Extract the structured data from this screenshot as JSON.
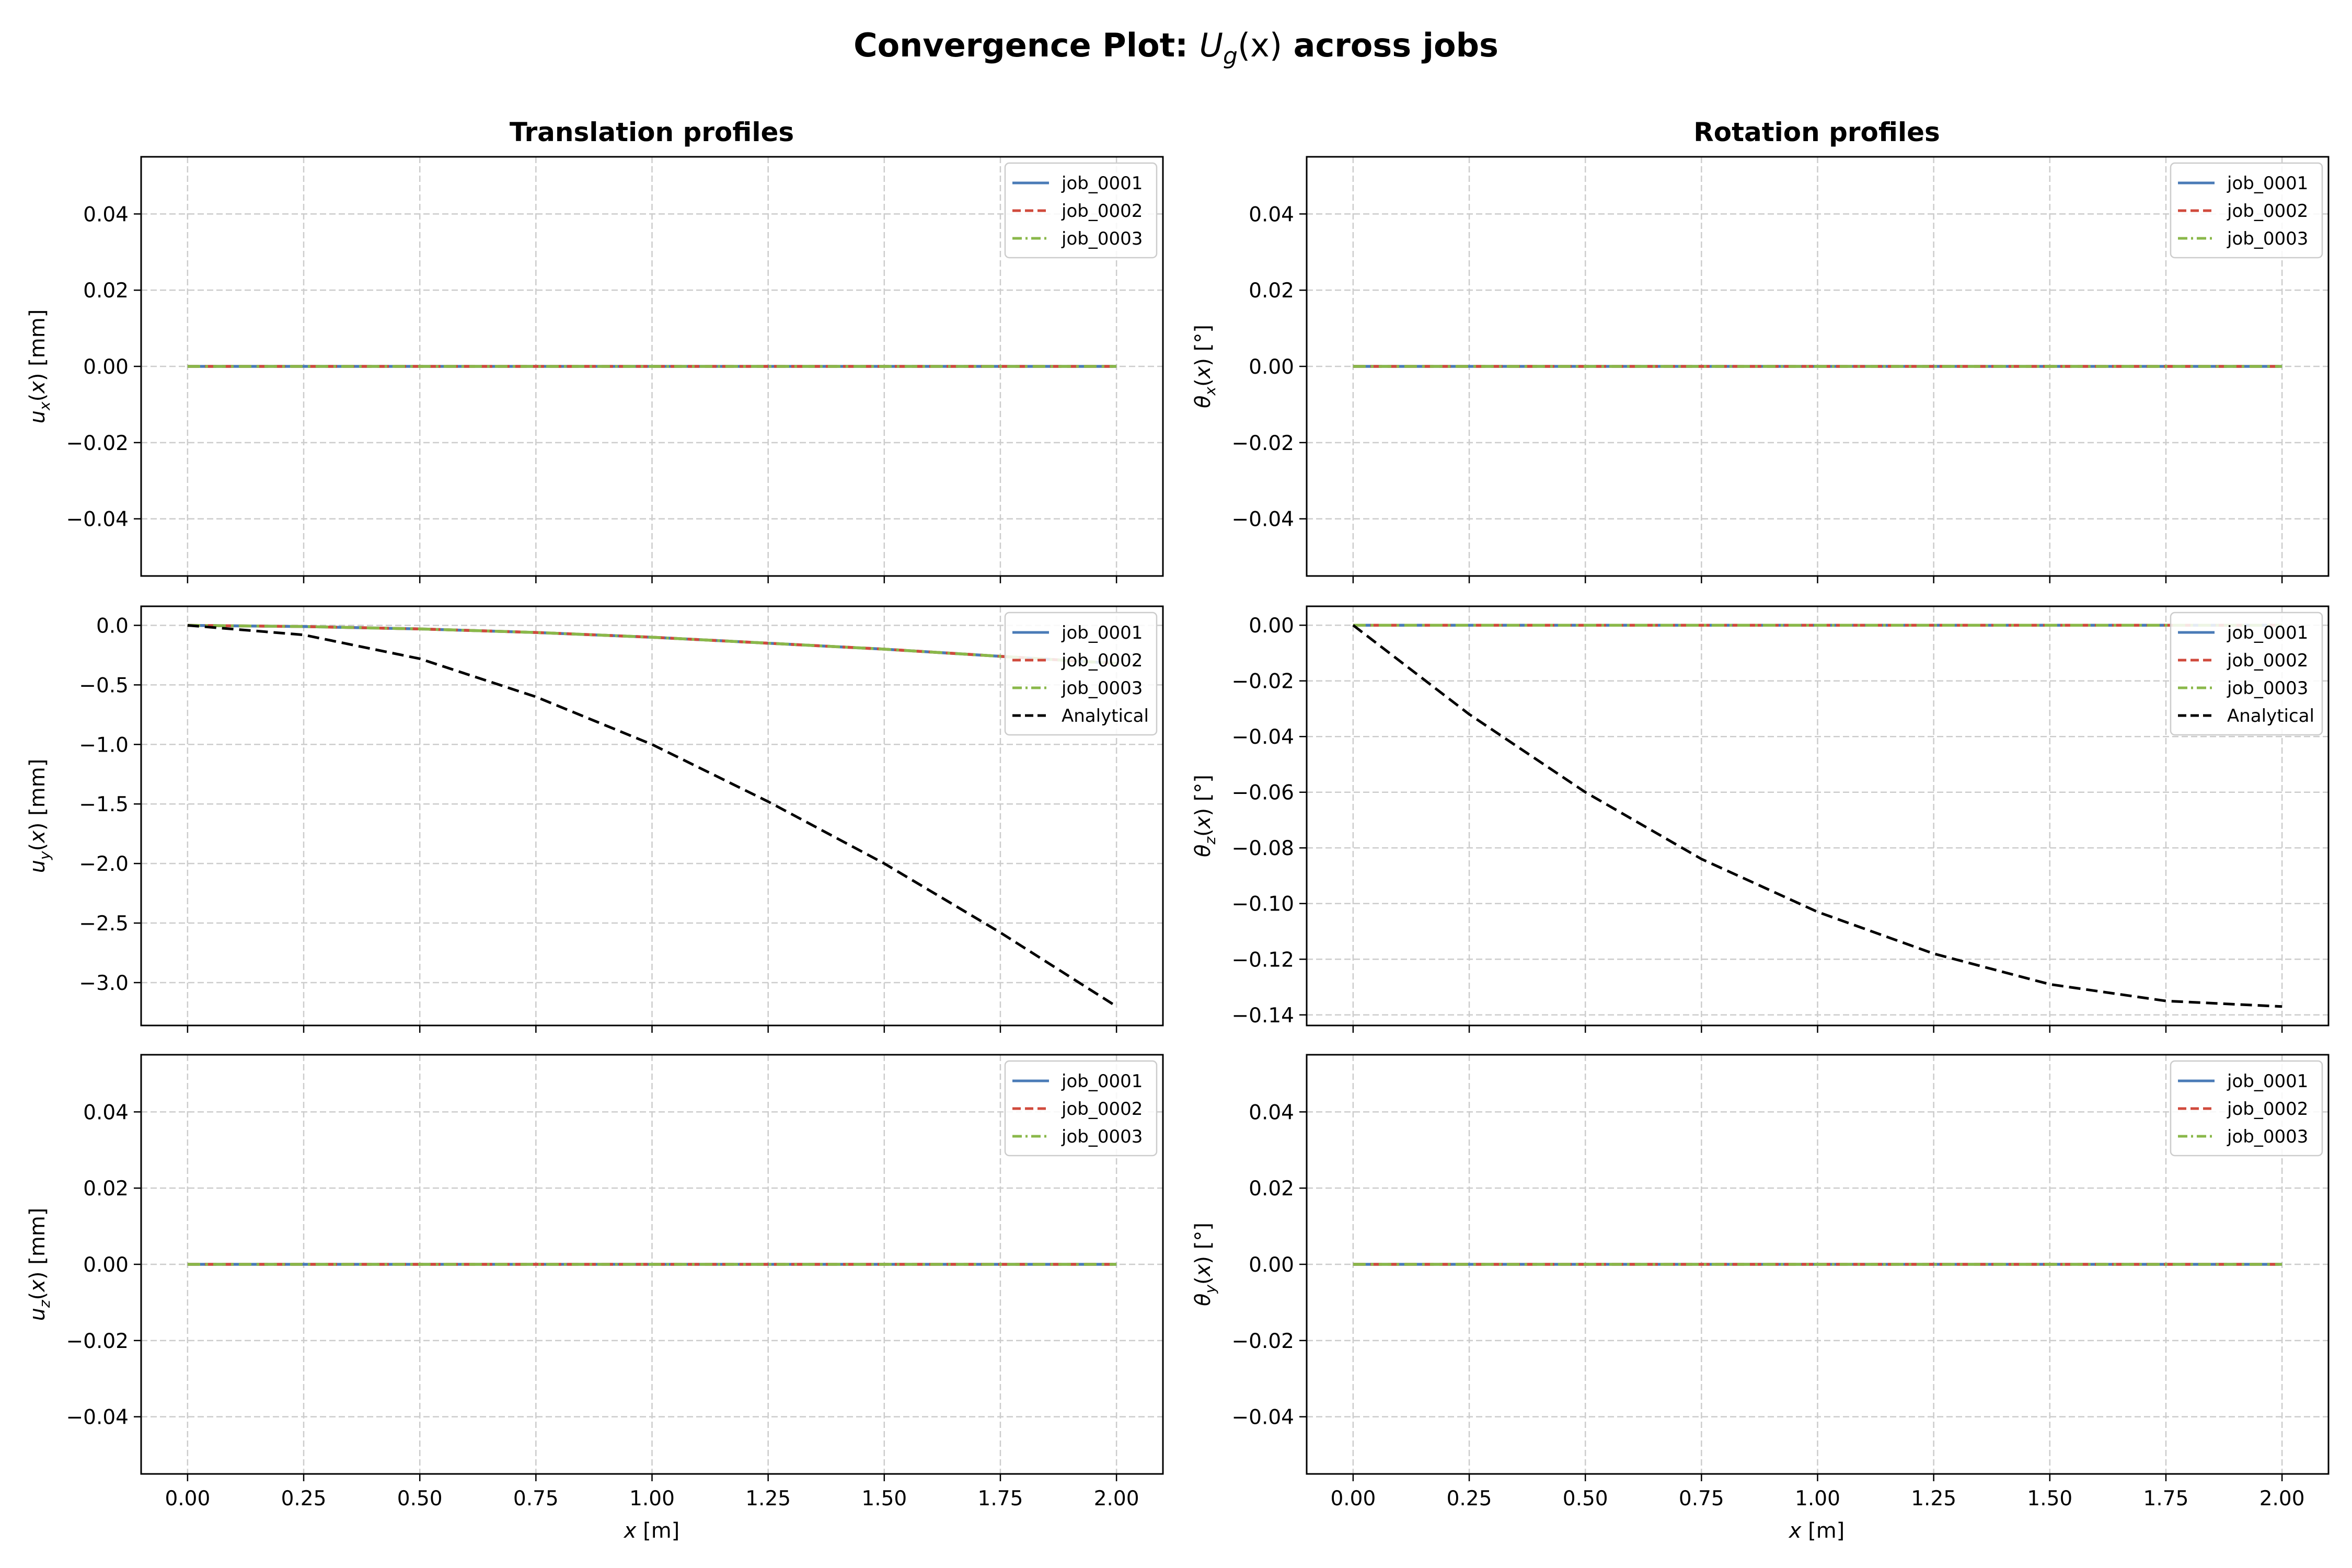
{
  "figure": {
    "title_prefix": "Convergence Plot: ",
    "title_math_main": "U",
    "title_math_sub": "g",
    "title_math_arg": "(x)",
    "title_suffix": " across jobs",
    "xlabel_math": "x",
    "xlabel_unit": " [m]"
  },
  "columns": [
    {
      "title": "Translation profiles"
    },
    {
      "title": "Rotation profiles"
    }
  ],
  "colors": {
    "job_0001": "#4a7bb7",
    "job_0002": "#d04a3c",
    "job_0003": "#8ab84a",
    "Analytical": "#000000",
    "grid": "#cccccc",
    "axes": "#000000"
  },
  "chart_data": [
    {
      "type": "line",
      "panel": "translation-x",
      "ylabel": {
        "sym": "u",
        "sub": "x",
        "unit": "[mm]"
      },
      "xlim": [
        -0.1,
        2.1
      ],
      "ylim": [
        -0.055,
        0.055
      ],
      "xticks": [
        "0.00",
        "0.25",
        "0.50",
        "0.75",
        "1.00",
        "1.25",
        "1.50",
        "1.75",
        "2.00"
      ],
      "yticks": [
        0.04,
        0.02,
        0.0,
        -0.02,
        -0.04
      ],
      "ytick_labels": [
        "0.04",
        "0.02",
        "0.00",
        "−0.02",
        "−0.04"
      ],
      "show_xticklabels": false,
      "legend": "upper right",
      "series": [
        {
          "name": "job_0001",
          "style": "solid",
          "x": [
            0,
            2
          ],
          "y": [
            0,
            0
          ]
        },
        {
          "name": "job_0002",
          "style": "dashed",
          "x": [
            0,
            2
          ],
          "y": [
            0,
            0
          ]
        },
        {
          "name": "job_0003",
          "style": "dashdot",
          "x": [
            0,
            2
          ],
          "y": [
            0,
            0
          ]
        }
      ]
    },
    {
      "type": "line",
      "panel": "rotation-x",
      "ylabel": {
        "sym": "θ",
        "sub": "x",
        "unit": "[°]"
      },
      "xlim": [
        -0.1,
        2.1
      ],
      "ylim": [
        -0.055,
        0.055
      ],
      "xticks": [
        "0.00",
        "0.25",
        "0.50",
        "0.75",
        "1.00",
        "1.25",
        "1.50",
        "1.75",
        "2.00"
      ],
      "yticks": [
        0.04,
        0.02,
        0.0,
        -0.02,
        -0.04
      ],
      "ytick_labels": [
        "0.04",
        "0.02",
        "0.00",
        "−0.02",
        "−0.04"
      ],
      "show_xticklabels": false,
      "legend": "upper right",
      "series": [
        {
          "name": "job_0001",
          "style": "solid",
          "x": [
            0,
            2
          ],
          "y": [
            0,
            0
          ]
        },
        {
          "name": "job_0002",
          "style": "dashed",
          "x": [
            0,
            2
          ],
          "y": [
            0,
            0
          ]
        },
        {
          "name": "job_0003",
          "style": "dashdot",
          "x": [
            0,
            2
          ],
          "y": [
            0,
            0
          ]
        }
      ]
    },
    {
      "type": "line",
      "panel": "translation-y",
      "ylabel": {
        "sym": "u",
        "sub": "y",
        "unit": "[mm]"
      },
      "xlim": [
        -0.1,
        2.1
      ],
      "ylim": [
        -3.36,
        0.16
      ],
      "xticks": [
        "0.00",
        "0.25",
        "0.50",
        "0.75",
        "1.00",
        "1.25",
        "1.50",
        "1.75",
        "2.00"
      ],
      "yticks": [
        0.0,
        -0.5,
        -1.0,
        -1.5,
        -2.0,
        -2.5,
        -3.0
      ],
      "ytick_labels": [
        "0.0",
        "−0.5",
        "−1.0",
        "−1.5",
        "−2.0",
        "−2.5",
        "−3.0"
      ],
      "show_xticklabels": false,
      "legend": "upper right",
      "series": [
        {
          "name": "job_0001",
          "style": "solid",
          "x": [
            0,
            0.25,
            0.5,
            0.75,
            1.0,
            1.25,
            1.5,
            1.75,
            2.0
          ],
          "y": [
            0,
            -0.01,
            -0.03,
            -0.06,
            -0.1,
            -0.15,
            -0.2,
            -0.26,
            -0.32
          ]
        },
        {
          "name": "job_0002",
          "style": "dashed",
          "x": [
            0,
            0.25,
            0.5,
            0.75,
            1.0,
            1.25,
            1.5,
            1.75,
            2.0
          ],
          "y": [
            0,
            -0.01,
            -0.03,
            -0.06,
            -0.1,
            -0.15,
            -0.2,
            -0.26,
            -0.32
          ]
        },
        {
          "name": "job_0003",
          "style": "dashdot",
          "x": [
            0,
            0.25,
            0.5,
            0.75,
            1.0,
            1.25,
            1.5,
            1.75,
            2.0
          ],
          "y": [
            0,
            -0.01,
            -0.03,
            -0.06,
            -0.1,
            -0.15,
            -0.2,
            -0.26,
            -0.32
          ]
        },
        {
          "name": "Analytical",
          "style": "dashed",
          "x": [
            0,
            0.25,
            0.5,
            0.75,
            1.0,
            1.25,
            1.5,
            1.75,
            2.0
          ],
          "y": [
            0,
            -0.08,
            -0.28,
            -0.6,
            -1.0,
            -1.48,
            -2.0,
            -2.58,
            -3.2
          ]
        }
      ]
    },
    {
      "type": "line",
      "panel": "rotation-z",
      "ylabel": {
        "sym": "θ",
        "sub": "z",
        "unit": "[°]"
      },
      "xlim": [
        -0.1,
        2.1
      ],
      "ylim": [
        -0.1438,
        0.0068
      ],
      "xticks": [
        "0.00",
        "0.25",
        "0.50",
        "0.75",
        "1.00",
        "1.25",
        "1.50",
        "1.75",
        "2.00"
      ],
      "yticks": [
        0.0,
        -0.02,
        -0.04,
        -0.06,
        -0.08,
        -0.1,
        -0.12,
        -0.14
      ],
      "ytick_labels": [
        "0.00",
        "−0.02",
        "−0.04",
        "−0.06",
        "−0.08",
        "−0.10",
        "−0.12",
        "−0.14"
      ],
      "show_xticklabels": false,
      "legend": "upper right",
      "series": [
        {
          "name": "job_0001",
          "style": "solid",
          "x": [
            0,
            2
          ],
          "y": [
            0,
            0
          ]
        },
        {
          "name": "job_0002",
          "style": "dashed",
          "x": [
            0,
            2
          ],
          "y": [
            0,
            0
          ]
        },
        {
          "name": "job_0003",
          "style": "dashdot",
          "x": [
            0,
            2
          ],
          "y": [
            0,
            0
          ]
        },
        {
          "name": "Analytical",
          "style": "dashed",
          "x": [
            0,
            0.25,
            0.5,
            0.75,
            1.0,
            1.25,
            1.5,
            1.75,
            2.0
          ],
          "y": [
            0,
            -0.032,
            -0.06,
            -0.084,
            -0.103,
            -0.118,
            -0.129,
            -0.135,
            -0.137
          ]
        }
      ]
    },
    {
      "type": "line",
      "panel": "translation-z",
      "ylabel": {
        "sym": "u",
        "sub": "z",
        "unit": "[mm]"
      },
      "xlim": [
        -0.1,
        2.1
      ],
      "ylim": [
        -0.055,
        0.055
      ],
      "xticks": [
        "0.00",
        "0.25",
        "0.50",
        "0.75",
        "1.00",
        "1.25",
        "1.50",
        "1.75",
        "2.00"
      ],
      "yticks": [
        0.04,
        0.02,
        0.0,
        -0.02,
        -0.04
      ],
      "ytick_labels": [
        "0.04",
        "0.02",
        "0.00",
        "−0.02",
        "−0.04"
      ],
      "show_xticklabels": true,
      "legend": "upper right",
      "series": [
        {
          "name": "job_0001",
          "style": "solid",
          "x": [
            0,
            2
          ],
          "y": [
            0,
            0
          ]
        },
        {
          "name": "job_0002",
          "style": "dashed",
          "x": [
            0,
            2
          ],
          "y": [
            0,
            0
          ]
        },
        {
          "name": "job_0003",
          "style": "dashdot",
          "x": [
            0,
            2
          ],
          "y": [
            0,
            0
          ]
        }
      ]
    },
    {
      "type": "line",
      "panel": "rotation-y",
      "ylabel": {
        "sym": "θ",
        "sub": "y",
        "unit": "[°]"
      },
      "xlim": [
        -0.1,
        2.1
      ],
      "ylim": [
        -0.055,
        0.055
      ],
      "xticks": [
        "0.00",
        "0.25",
        "0.50",
        "0.75",
        "1.00",
        "1.25",
        "1.50",
        "1.75",
        "2.00"
      ],
      "yticks": [
        0.04,
        0.02,
        0.0,
        -0.02,
        -0.04
      ],
      "ytick_labels": [
        "0.04",
        "0.02",
        "0.00",
        "−0.02",
        "−0.04"
      ],
      "show_xticklabels": true,
      "legend": "upper right",
      "series": [
        {
          "name": "job_0001",
          "style": "solid",
          "x": [
            0,
            2
          ],
          "y": [
            0,
            0
          ]
        },
        {
          "name": "job_0002",
          "style": "dashed",
          "x": [
            0,
            2
          ],
          "y": [
            0,
            0
          ]
        },
        {
          "name": "job_0003",
          "style": "dashdot",
          "x": [
            0,
            2
          ],
          "y": [
            0,
            0
          ]
        }
      ]
    }
  ]
}
